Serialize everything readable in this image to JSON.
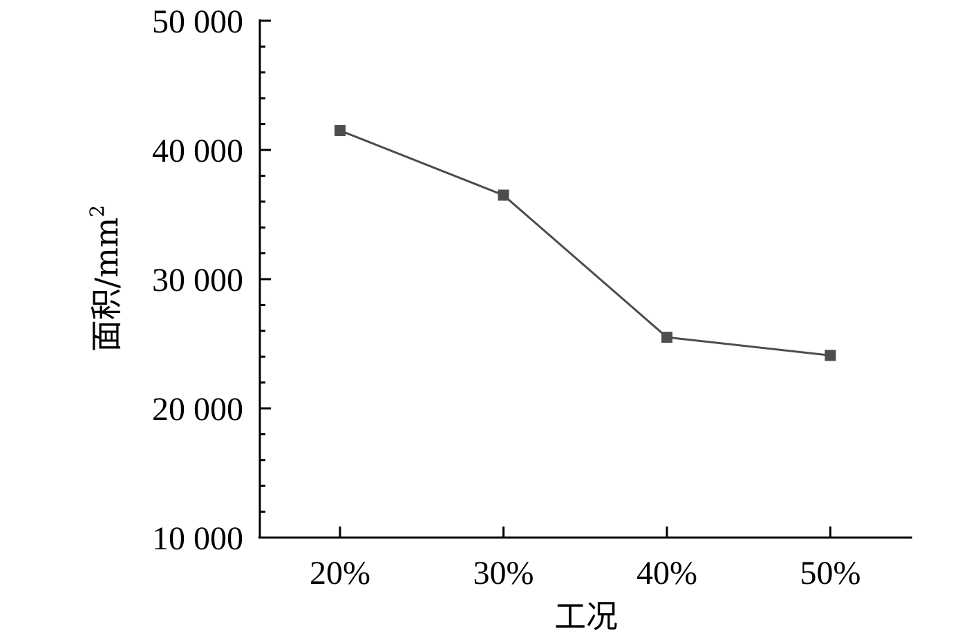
{
  "chart_data": {
    "type": "line",
    "title": "",
    "xlabel": "工况",
    "ylabel": "面积/mm",
    "ylabel_superscript": "2",
    "categories": [
      "20%",
      "30%",
      "40%",
      "50%"
    ],
    "y_tick_labels": [
      "10 000",
      "20 000",
      "30 000",
      "40 000",
      "50 000"
    ],
    "yticks": [
      10000,
      20000,
      30000,
      40000,
      50000
    ],
    "ylim": [
      10000,
      50000
    ],
    "grid": false,
    "legend": "none",
    "series": [
      {
        "values": [
          41500,
          36500,
          25500,
          24100
        ],
        "color": "#4d4d4d",
        "marker": "square"
      }
    ]
  }
}
